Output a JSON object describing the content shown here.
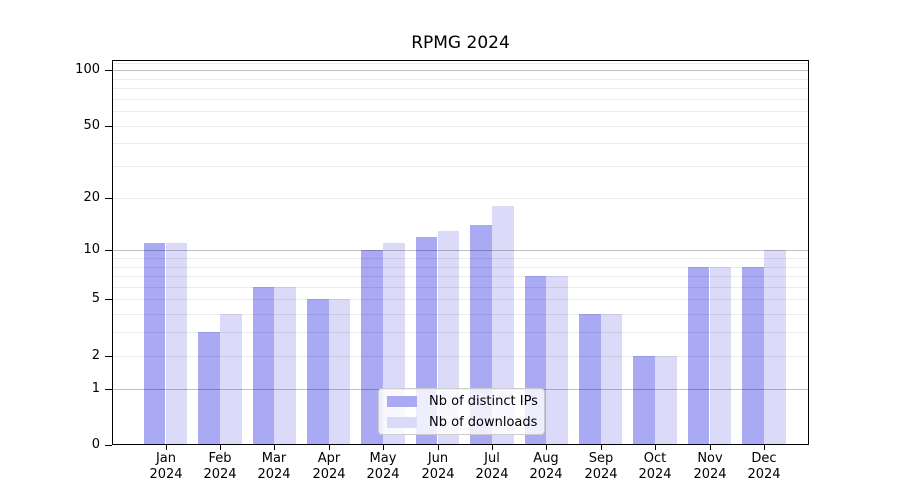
{
  "title": "RPMG 2024",
  "chart_data": {
    "type": "bar",
    "title": "RPMG 2024",
    "categories": [
      "Jan 2024",
      "Feb 2024",
      "Mar 2024",
      "Apr 2024",
      "May 2024",
      "Jun 2024",
      "Jul 2024",
      "Aug 2024",
      "Sep 2024",
      "Oct 2024",
      "Nov 2024",
      "Dec 2024"
    ],
    "x_tick_months": [
      "Jan",
      "Feb",
      "Mar",
      "Apr",
      "May",
      "Jun",
      "Jul",
      "Aug",
      "Sep",
      "Oct",
      "Nov",
      "Dec"
    ],
    "x_tick_year": "2024",
    "series": [
      {
        "name": "Nb of distinct IPs",
        "color": "#a9a9f4",
        "values": [
          11,
          3,
          6,
          5,
          10,
          12,
          14,
          7,
          4,
          2,
          8,
          8
        ]
      },
      {
        "name": "Nb of downloads",
        "color": "#dbdbf9",
        "values": [
          11,
          4,
          6,
          5,
          11,
          13,
          18,
          7,
          4,
          2,
          8,
          10
        ]
      }
    ],
    "yscale": "log10(1+value)",
    "ylim": [
      0,
      113
    ],
    "y_ticks": [
      0,
      1,
      2,
      5,
      10,
      20,
      50,
      100
    ],
    "major_gridline_values": [
      1,
      10,
      100
    ],
    "minor_gridline_values": [
      2,
      3,
      4,
      5,
      6,
      7,
      8,
      9,
      20,
      30,
      40,
      50,
      60,
      70,
      80,
      90,
      109
    ],
    "grid": true,
    "legend_position": "lower center"
  },
  "colors": {
    "bar_ips": "#a9a9f4",
    "bar_downloads": "#dbdbf9",
    "axis": "#000000",
    "major_grid": "rgba(0,0,0,0.24)",
    "minor_grid": "rgba(0,0,0,0.08)",
    "legend_bg": "rgba(255,255,255,0.8)",
    "legend_border": "#cccccc"
  }
}
